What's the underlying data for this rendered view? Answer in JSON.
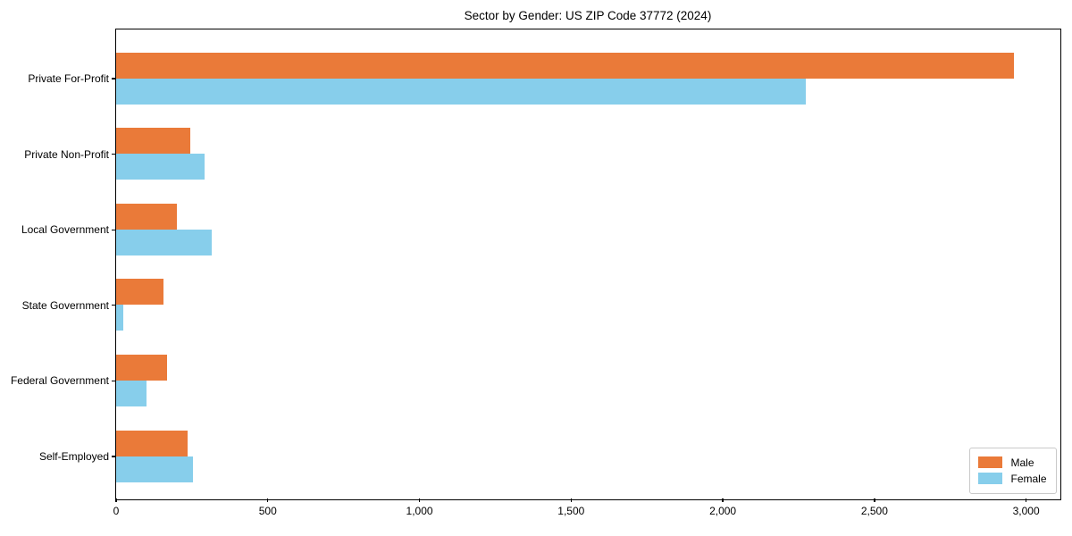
{
  "chart_data": {
    "type": "bar",
    "orientation": "horizontal",
    "title": "Sector by Gender: US ZIP Code 37772 (2024)",
    "categories": [
      "Private For-Profit",
      "Private Non-Profit",
      "Local Government",
      "State Government",
      "Federal Government",
      "Self-Employed"
    ],
    "series": [
      {
        "name": "Male",
        "color": "#EA7A39",
        "values": [
          2960,
          247,
          203,
          159,
          168,
          238
        ]
      },
      {
        "name": "Female",
        "color": "#87CEEB",
        "values": [
          2275,
          294,
          318,
          26,
          103,
          256
        ]
      }
    ],
    "xlim": [
      0,
      3110
    ],
    "xticks": [
      0,
      500,
      1000,
      1500,
      2000,
      2500,
      3000
    ],
    "xtick_labels": [
      "0",
      "500",
      "1,000",
      "1,500",
      "2,000",
      "2,500",
      "3,000"
    ],
    "legend_position": "lower right",
    "grid": false,
    "axis_color": "#000000",
    "background_color": "#ffffff"
  }
}
